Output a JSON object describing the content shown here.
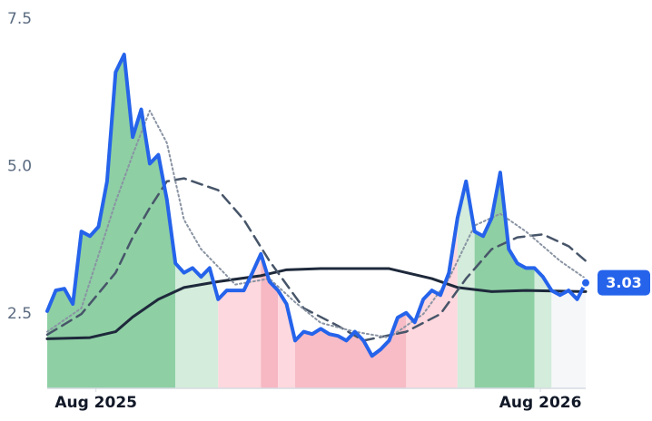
{
  "chart_data": {
    "type": "line",
    "xlim": [
      0,
      63
    ],
    "ylim": [
      1.24,
      7.8
    ],
    "yticks": [
      2.5,
      {
        "value": 5,
        "label": "5.0"
      },
      7.5
    ],
    "xticks": [
      {
        "value": 5.7,
        "label": "Aug 2025"
      },
      {
        "value": 57.7,
        "label": "Aug 2026"
      }
    ],
    "regions": [
      {
        "x0": 0,
        "x1": 15,
        "color": "#8ecfa4"
      },
      {
        "x0": 15,
        "x1": 20,
        "color": "#d3ecdb"
      },
      {
        "x0": 20,
        "x1": 25,
        "color": "#fdd8de"
      },
      {
        "x0": 25,
        "x1": 27,
        "color": "#f7b8c3"
      },
      {
        "x0": 27,
        "x1": 29,
        "color": "#fdd8de"
      },
      {
        "x0": 29,
        "x1": 42,
        "color": "#f7bcc6"
      },
      {
        "x0": 42,
        "x1": 48,
        "color": "#fdd8de"
      },
      {
        "x0": 48,
        "x1": 50,
        "color": "#d3ecdb"
      },
      {
        "x0": 50,
        "x1": 57,
        "color": "#8ecfa4"
      },
      {
        "x0": 57,
        "x1": 59,
        "color": "#d3ecdb"
      },
      {
        "x0": 59,
        "x1": 63,
        "color": "#f6f7f9"
      }
    ],
    "series": [
      {
        "color": "#2563eb",
        "style": "solid",
        "width": 4,
        "x": [
          0,
          1,
          2,
          3,
          4,
          5,
          6,
          7,
          8,
          9,
          10,
          11,
          12,
          13,
          14,
          15,
          16,
          17,
          18,
          19,
          20,
          21,
          22,
          23,
          24,
          25,
          26,
          27,
          28,
          29,
          30,
          31,
          32,
          33,
          34,
          35,
          36,
          37,
          38,
          39,
          40,
          41,
          42,
          43,
          44,
          45,
          46,
          47,
          48,
          49,
          50,
          51,
          52,
          53,
          54,
          55,
          56,
          57,
          58,
          59,
          60,
          61,
          62,
          63
        ],
        "values": [
          2.55,
          2.9,
          2.93,
          2.67,
          3.9,
          3.82,
          3.98,
          4.75,
          6.6,
          6.9,
          5.5,
          5.97,
          5.05,
          5.2,
          4.44,
          3.36,
          3.2,
          3.28,
          3.13,
          3.28,
          2.75,
          2.9,
          2.9,
          2.9,
          3.2,
          3.52,
          3.05,
          2.9,
          2.67,
          2.05,
          2.2,
          2.16,
          2.25,
          2.16,
          2.13,
          2.05,
          2.2,
          2.05,
          1.79,
          1.9,
          2.05,
          2.44,
          2.52,
          2.36,
          2.75,
          2.9,
          2.82,
          3.2,
          4.13,
          4.75,
          3.9,
          3.82,
          4.13,
          4.9,
          3.6,
          3.36,
          3.28,
          3.28,
          3.13,
          2.9,
          2.82,
          2.9,
          2.75,
          3.03
        ]
      },
      {
        "color": "#8a94a3",
        "style": "dotted",
        "width": 2,
        "x": [
          0,
          4,
          8,
          10,
          12,
          14,
          16,
          18,
          22,
          26,
          29,
          32,
          36,
          40,
          44,
          47,
          50,
          53,
          56,
          60,
          63
        ],
        "values": [
          2.2,
          2.6,
          4.4,
          5.2,
          5.95,
          5.4,
          4.1,
          3.6,
          3.0,
          3.1,
          2.7,
          2.35,
          2.2,
          2.1,
          2.5,
          3.1,
          4.0,
          4.2,
          3.9,
          3.4,
          3.1
        ]
      },
      {
        "color": "#475569",
        "style": "dashed",
        "width": 2.5,
        "x": [
          0,
          4,
          8,
          10,
          12,
          14,
          16,
          20,
          23,
          26,
          30,
          34,
          37,
          42,
          46,
          49,
          52,
          55,
          58,
          61,
          63
        ],
        "values": [
          2.15,
          2.5,
          3.2,
          3.8,
          4.3,
          4.75,
          4.8,
          4.6,
          4.1,
          3.4,
          2.6,
          2.3,
          2.05,
          2.2,
          2.5,
          3.1,
          3.6,
          3.8,
          3.85,
          3.65,
          3.4
        ]
      },
      {
        "color": "#1e293b",
        "style": "solid",
        "width": 3,
        "x": [
          0,
          5,
          8,
          10,
          13,
          16,
          20,
          25,
          28,
          32,
          40,
          45,
          48,
          52,
          56,
          63
        ],
        "values": [
          2.08,
          2.1,
          2.2,
          2.45,
          2.75,
          2.95,
          3.05,
          3.15,
          3.25,
          3.27,
          3.27,
          3.1,
          2.95,
          2.88,
          2.9,
          2.88
        ]
      }
    ]
  }
}
